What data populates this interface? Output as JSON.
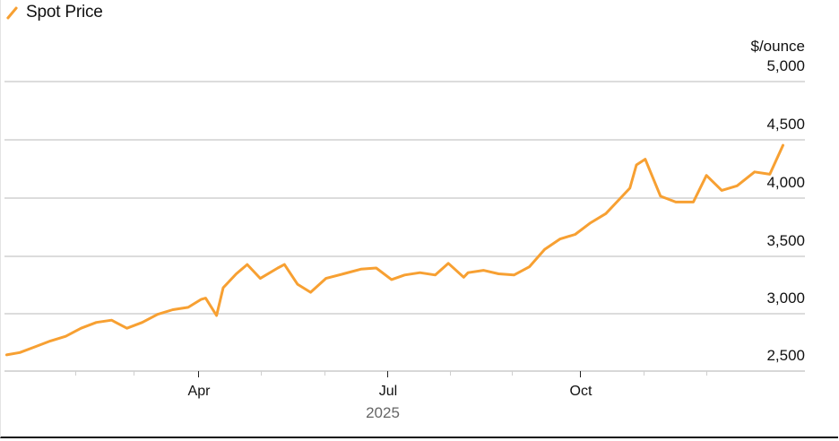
{
  "legend": {
    "series_label": "Spot Price",
    "series_color": "#f7a032",
    "icon": "line-swatch-icon"
  },
  "y_axis": {
    "unit": "$/ounce",
    "ticks": [
      {
        "value": 5000,
        "label": "5,000"
      },
      {
        "value": 4500,
        "label": "4,500"
      },
      {
        "value": 4000,
        "label": "4,000"
      },
      {
        "value": 3500,
        "label": "3,500"
      },
      {
        "value": 3000,
        "label": "3,000"
      },
      {
        "value": 2500,
        "label": "2,500"
      }
    ]
  },
  "x_axis": {
    "major_ticks": [
      {
        "label": "Apr"
      },
      {
        "label": "Jul"
      },
      {
        "label": "Oct"
      }
    ],
    "year_label": "2025"
  },
  "chart_data": {
    "type": "line",
    "title": "",
    "xlabel": "2025",
    "ylabel": "$/ounce",
    "ylim": [
      2500,
      5000
    ],
    "grid": true,
    "legend_position": "top-left",
    "x_tick_labels": [
      "Apr",
      "Jul",
      "Oct"
    ],
    "y_tick_labels": [
      "2,500",
      "3,000",
      "3,500",
      "4,000",
      "4,500",
      "5,000"
    ],
    "series": [
      {
        "name": "Spot Price",
        "color": "#f7a032",
        "x": [
          "2025-01-02",
          "2025-01-08",
          "2025-01-15",
          "2025-01-22",
          "2025-01-29",
          "2025-02-05",
          "2025-02-12",
          "2025-02-19",
          "2025-02-26",
          "2025-03-05",
          "2025-03-12",
          "2025-03-19",
          "2025-03-26",
          "2025-04-01",
          "2025-04-03",
          "2025-04-08",
          "2025-04-11",
          "2025-04-17",
          "2025-04-22",
          "2025-04-28",
          "2025-05-06",
          "2025-05-09",
          "2025-05-15",
          "2025-05-21",
          "2025-05-28",
          "2025-06-05",
          "2025-06-13",
          "2025-06-20",
          "2025-06-27",
          "2025-07-03",
          "2025-07-10",
          "2025-07-17",
          "2025-07-23",
          "2025-07-30",
          "2025-08-01",
          "2025-08-08",
          "2025-08-15",
          "2025-08-22",
          "2025-08-29",
          "2025-09-05",
          "2025-09-12",
          "2025-09-19",
          "2025-09-26",
          "2025-10-03",
          "2025-10-08",
          "2025-10-14",
          "2025-10-17",
          "2025-10-21",
          "2025-10-28",
          "2025-11-04",
          "2025-11-12",
          "2025-11-18",
          "2025-11-25",
          "2025-12-02",
          "2025-12-10",
          "2025-12-17",
          "2025-12-23"
        ],
        "values": [
          2640,
          2660,
          2710,
          2760,
          2800,
          2870,
          2920,
          2940,
          2870,
          2920,
          2990,
          3030,
          3050,
          3120,
          3130,
          2980,
          3220,
          3340,
          3420,
          3300,
          3390,
          3420,
          3250,
          3180,
          3300,
          3340,
          3380,
          3390,
          3290,
          3330,
          3350,
          3330,
          3430,
          3310,
          3350,
          3370,
          3340,
          3330,
          3400,
          3550,
          3640,
          3680,
          3780,
          3860,
          3960,
          4080,
          4280,
          4330,
          4010,
          3960,
          3960,
          4190,
          4060,
          4100,
          4220,
          4200,
          4450
        ]
      }
    ]
  }
}
